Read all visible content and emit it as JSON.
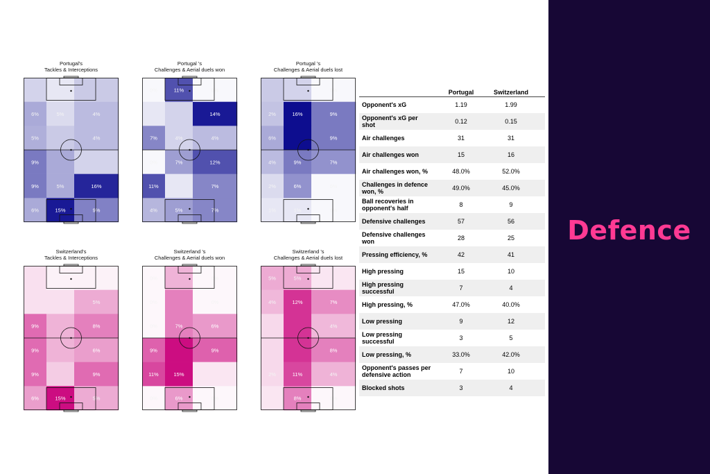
{
  "panel": {
    "title": "Defence",
    "accent": "#ff3a93",
    "background": "#170735"
  },
  "colors": {
    "portugal": "#0d0d8f",
    "switzerland": "#c9007a"
  },
  "chart_data": [
    {
      "type": "heatmap",
      "team": "portugal",
      "title": [
        "Portugal's",
        "Tackles & Interceptions"
      ],
      "cells": [
        {
          "b": 0.18,
          "t": ""
        },
        {
          "b": 0.1,
          "t": ""
        },
        {
          "b": 0.22,
          "t": ""
        },
        {
          "b": 0.35,
          "t": "6%"
        },
        {
          "b": 0.15,
          "t": "5%"
        },
        {
          "b": 0.28,
          "t": "4%"
        },
        {
          "b": 0.33,
          "t": "5%"
        },
        {
          "b": 0.22,
          "t": ""
        },
        {
          "b": 0.28,
          "t": "4%"
        },
        {
          "b": 0.55,
          "t": "9%"
        },
        {
          "b": 0.35,
          "t": ""
        },
        {
          "b": 0.18,
          "t": ""
        },
        {
          "b": 0.55,
          "t": "9%"
        },
        {
          "b": 0.35,
          "t": "5%"
        },
        {
          "b": 0.9,
          "t": "16%"
        },
        {
          "b": 0.35,
          "t": "6%"
        },
        {
          "b": 0.95,
          "t": "15%"
        },
        {
          "b": 0.52,
          "t": "9%"
        }
      ]
    },
    {
      "type": "heatmap",
      "team": "portugal",
      "title": [
        "Portugal 's",
        "Challenges & Aerial duels won"
      ],
      "cells": [
        {
          "b": 0.03,
          "t": "0%"
        },
        {
          "b": 0.72,
          "t": "11%"
        },
        {
          "b": 0.03,
          "t": "0%"
        },
        {
          "b": 0.1,
          "t": ""
        },
        {
          "b": 0.18,
          "t": ""
        },
        {
          "b": 0.95,
          "t": "14%"
        },
        {
          "b": 0.5,
          "t": "7%"
        },
        {
          "b": 0.18,
          "t": "4%"
        },
        {
          "b": 0.28,
          "t": "4%"
        },
        {
          "b": 0.03,
          "t": "0%"
        },
        {
          "b": 0.4,
          "t": "7%"
        },
        {
          "b": 0.72,
          "t": "12%"
        },
        {
          "b": 0.72,
          "t": "11%"
        },
        {
          "b": 0.1,
          "t": ""
        },
        {
          "b": 0.5,
          "t": "7%"
        },
        {
          "b": 0.3,
          "t": "4%"
        },
        {
          "b": 0.4,
          "t": "5%"
        },
        {
          "b": 0.5,
          "t": "7%"
        }
      ]
    },
    {
      "type": "heatmap",
      "team": "portugal",
      "title": [
        "Portugal 's",
        "Challenges & Aerial duels lost"
      ],
      "cells": [
        {
          "b": 0.22,
          "t": ""
        },
        {
          "b": 0.18,
          "t": ""
        },
        {
          "b": 0.03,
          "t": "0%"
        },
        {
          "b": 0.25,
          "t": "2%"
        },
        {
          "b": 1.0,
          "t": "16%"
        },
        {
          "b": 0.55,
          "t": "9%"
        },
        {
          "b": 0.35,
          "t": "6%"
        },
        {
          "b": 1.0,
          "t": ""
        },
        {
          "b": 0.55,
          "t": "9%"
        },
        {
          "b": 0.28,
          "t": "4%"
        },
        {
          "b": 0.55,
          "t": "9%"
        },
        {
          "b": 0.45,
          "t": "7%"
        },
        {
          "b": 0.15,
          "t": "2%"
        },
        {
          "b": 0.45,
          "t": "6%"
        },
        {
          "b": 0.03,
          "t": "0%"
        },
        {
          "b": 0.1,
          "t": "1%"
        },
        {
          "b": 0.1,
          "t": "1%"
        },
        {
          "b": 0.03,
          "t": "0%"
        }
      ]
    },
    {
      "type": "heatmap",
      "team": "switzerland",
      "title": [
        "Switzerland's",
        "Tackles & Interceptions"
      ],
      "cells": [
        {
          "b": 0.12,
          "t": ""
        },
        {
          "b": 0.05,
          "t": ""
        },
        {
          "b": 0.05,
          "t": ""
        },
        {
          "b": 0.12,
          "t": ""
        },
        {
          "b": 0.12,
          "t": ""
        },
        {
          "b": 0.33,
          "t": "5%"
        },
        {
          "b": 0.58,
          "t": "9%"
        },
        {
          "b": 0.3,
          "t": ""
        },
        {
          "b": 0.5,
          "t": "8%"
        },
        {
          "b": 0.58,
          "t": "9%"
        },
        {
          "b": 0.3,
          "t": ""
        },
        {
          "b": 0.38,
          "t": "6%"
        },
        {
          "b": 0.58,
          "t": "9%"
        },
        {
          "b": 0.2,
          "t": ""
        },
        {
          "b": 0.58,
          "t": "9%"
        },
        {
          "b": 0.38,
          "t": "6%"
        },
        {
          "b": 0.95,
          "t": "15%"
        },
        {
          "b": 0.33,
          "t": "5%"
        }
      ]
    },
    {
      "type": "heatmap",
      "team": "switzerland",
      "title": [
        "Switzerland 's",
        "Challenges & Aerial duels won"
      ],
      "cells": [
        {
          "b": 0.03,
          "t": "0%"
        },
        {
          "b": 0.3,
          "t": ""
        },
        {
          "b": 0.03,
          "t": "0%"
        },
        {
          "b": 0.03,
          "t": "0%"
        },
        {
          "b": 0.5,
          "t": ""
        },
        {
          "b": 0.03,
          "t": "0%"
        },
        {
          "b": 0.03,
          "t": "0%"
        },
        {
          "b": 0.5,
          "t": "7%"
        },
        {
          "b": 0.4,
          "t": "6%"
        },
        {
          "b": 0.62,
          "t": "9%"
        },
        {
          "b": 0.95,
          "t": ""
        },
        {
          "b": 0.62,
          "t": "9%"
        },
        {
          "b": 0.72,
          "t": "11%"
        },
        {
          "b": 0.95,
          "t": "15%"
        },
        {
          "b": 0.1,
          "t": ""
        },
        {
          "b": 0.03,
          "t": "0%"
        },
        {
          "b": 0.4,
          "t": "6%"
        },
        {
          "b": 0.03,
          "t": "0%"
        }
      ]
    },
    {
      "type": "heatmap",
      "team": "switzerland",
      "title": [
        "Switzerland 's",
        "Challenges & Aerial duels lost"
      ],
      "cells": [
        {
          "b": 0.33,
          "t": "5%"
        },
        {
          "b": 0.33,
          "t": "5%"
        },
        {
          "b": 0.1,
          "t": ""
        },
        {
          "b": 0.28,
          "t": "4%"
        },
        {
          "b": 0.8,
          "t": "12%"
        },
        {
          "b": 0.45,
          "t": "7%"
        },
        {
          "b": 0.15,
          "t": ""
        },
        {
          "b": 0.8,
          "t": ""
        },
        {
          "b": 0.28,
          "t": "4%"
        },
        {
          "b": 0.15,
          "t": ""
        },
        {
          "b": 0.8,
          "t": ""
        },
        {
          "b": 0.5,
          "t": "8%"
        },
        {
          "b": 0.15,
          "t": "2%"
        },
        {
          "b": 0.72,
          "t": "11%"
        },
        {
          "b": 0.3,
          "t": "4%"
        },
        {
          "b": 0.1,
          "t": ""
        },
        {
          "b": 0.5,
          "t": "8%"
        },
        {
          "b": 0.03,
          "t": "0%"
        }
      ]
    },
    {
      "type": "table",
      "columns": [
        "Portugal",
        "Switzerland"
      ],
      "rows": [
        {
          "label": "Opponent's xG",
          "portugal": "1.19",
          "switzerland": "1.99"
        },
        {
          "label": "Opponent's xG per shot",
          "portugal": "0.12",
          "switzerland": "0.15"
        },
        {
          "label": "Air challenges",
          "portugal": "31",
          "switzerland": "31"
        },
        {
          "label": "Air challenges won",
          "portugal": "15",
          "switzerland": "16"
        },
        {
          "label": "Air challenges won, %",
          "portugal": "48.0%",
          "switzerland": "52.0%"
        },
        {
          "label": "Challenges in defence won, %",
          "portugal": "49.0%",
          "switzerland": "45.0%"
        },
        {
          "label": "Ball recoveries in opponent's half",
          "portugal": "8",
          "switzerland": "9"
        },
        {
          "label": "Defensive challenges",
          "portugal": "57",
          "switzerland": "56"
        },
        {
          "label": "Defensive challenges won",
          "portugal": "28",
          "switzerland": "25"
        },
        {
          "label": "Pressing efficiency, %",
          "portugal": "42",
          "switzerland": "41"
        },
        {
          "label": "High pressing",
          "portugal": "15",
          "switzerland": "10"
        },
        {
          "label": "High pressing successful",
          "portugal": "7",
          "switzerland": "4"
        },
        {
          "label": "High pressing, %",
          "portugal": "47.0%",
          "switzerland": "40.0%"
        },
        {
          "label": "Low pressing",
          "portugal": "9",
          "switzerland": "12"
        },
        {
          "label": "Low pressing successful",
          "portugal": "3",
          "switzerland": "5"
        },
        {
          "label": "Low pressing, %",
          "portugal": "33.0%",
          "switzerland": "42.0%"
        },
        {
          "label": "Opponent's passes per defensive action",
          "portugal": "7",
          "switzerland": "10"
        },
        {
          "label": "Blocked shots",
          "portugal": "3",
          "switzerland": "4"
        }
      ]
    }
  ]
}
